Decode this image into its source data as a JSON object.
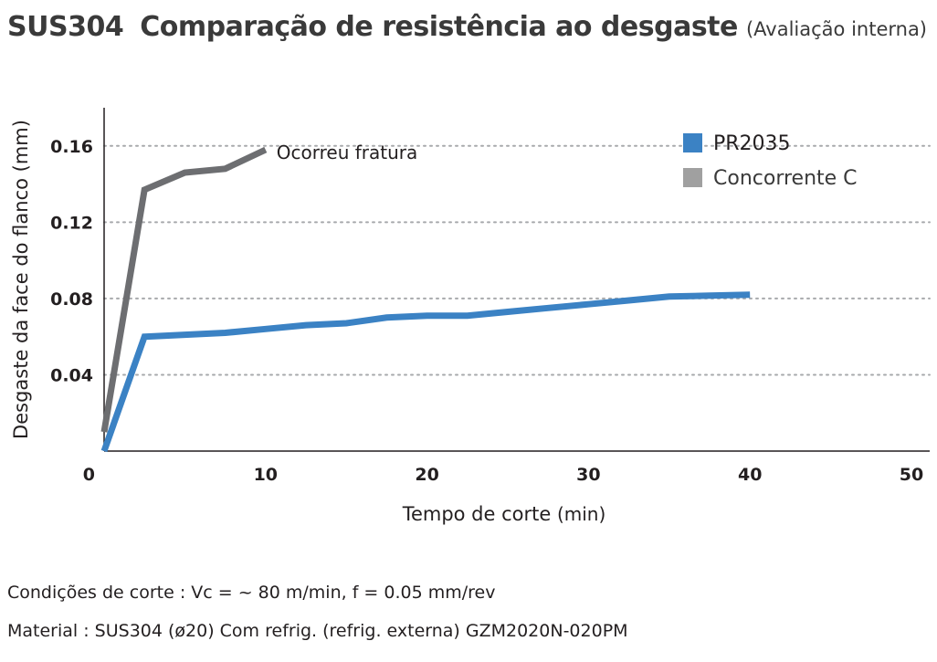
{
  "header": {
    "material": "SUS304",
    "title": "Comparação de resistência ao desgaste",
    "note": "(Avaliação interna)"
  },
  "footer": {
    "conditions": "Condições de corte : Vc = ~ 80 m/min,  f = 0.05 mm/rev",
    "material_line": "Material : SUS304 (ø20)  Com refrig. (refrig. externa)  GZM2020N-020PM"
  },
  "chart_data": {
    "type": "line",
    "title": "",
    "xlabel": "Tempo de corte",
    "xlabel_unit": "(min)",
    "ylabel": "Desgaste da face do flanco (mm)",
    "xlim": [
      0,
      50
    ],
    "ylim": [
      0,
      0.18
    ],
    "xticks": [
      "0",
      "10",
      "20",
      "30",
      "40",
      "50"
    ],
    "xtick_values": [
      0,
      10,
      20,
      30,
      40,
      50
    ],
    "yticks": [
      "0.04",
      "0.08",
      "0.12",
      "0.16"
    ],
    "ytick_values": [
      0.04,
      0.08,
      0.12,
      0.16
    ],
    "grid": "horizontal dotted",
    "legend_position": "top-right",
    "series": [
      {
        "name": "PR2035",
        "color": "#3b82c4",
        "x": [
          0,
          2.5,
          5,
          7.5,
          10,
          12.5,
          15,
          17.5,
          20,
          22.5,
          25,
          27.5,
          30,
          32.5,
          35,
          37.5,
          40
        ],
        "y": [
          0,
          0.06,
          0.061,
          0.062,
          0.064,
          0.066,
          0.067,
          0.07,
          0.071,
          0.071,
          0.073,
          0.075,
          0.077,
          0.079,
          0.081,
          0.0815,
          0.082
        ]
      },
      {
        "name": "Concorrente C",
        "color": "#a0a0a0",
        "line_color": "#6d6e71",
        "x": [
          0,
          2.5,
          5,
          7.5,
          10
        ],
        "y": [
          0.01,
          0.137,
          0.146,
          0.148,
          0.158
        ]
      }
    ],
    "annotations": [
      {
        "text": "Ocorreu fratura",
        "x": 10,
        "y": 0.158
      }
    ]
  }
}
